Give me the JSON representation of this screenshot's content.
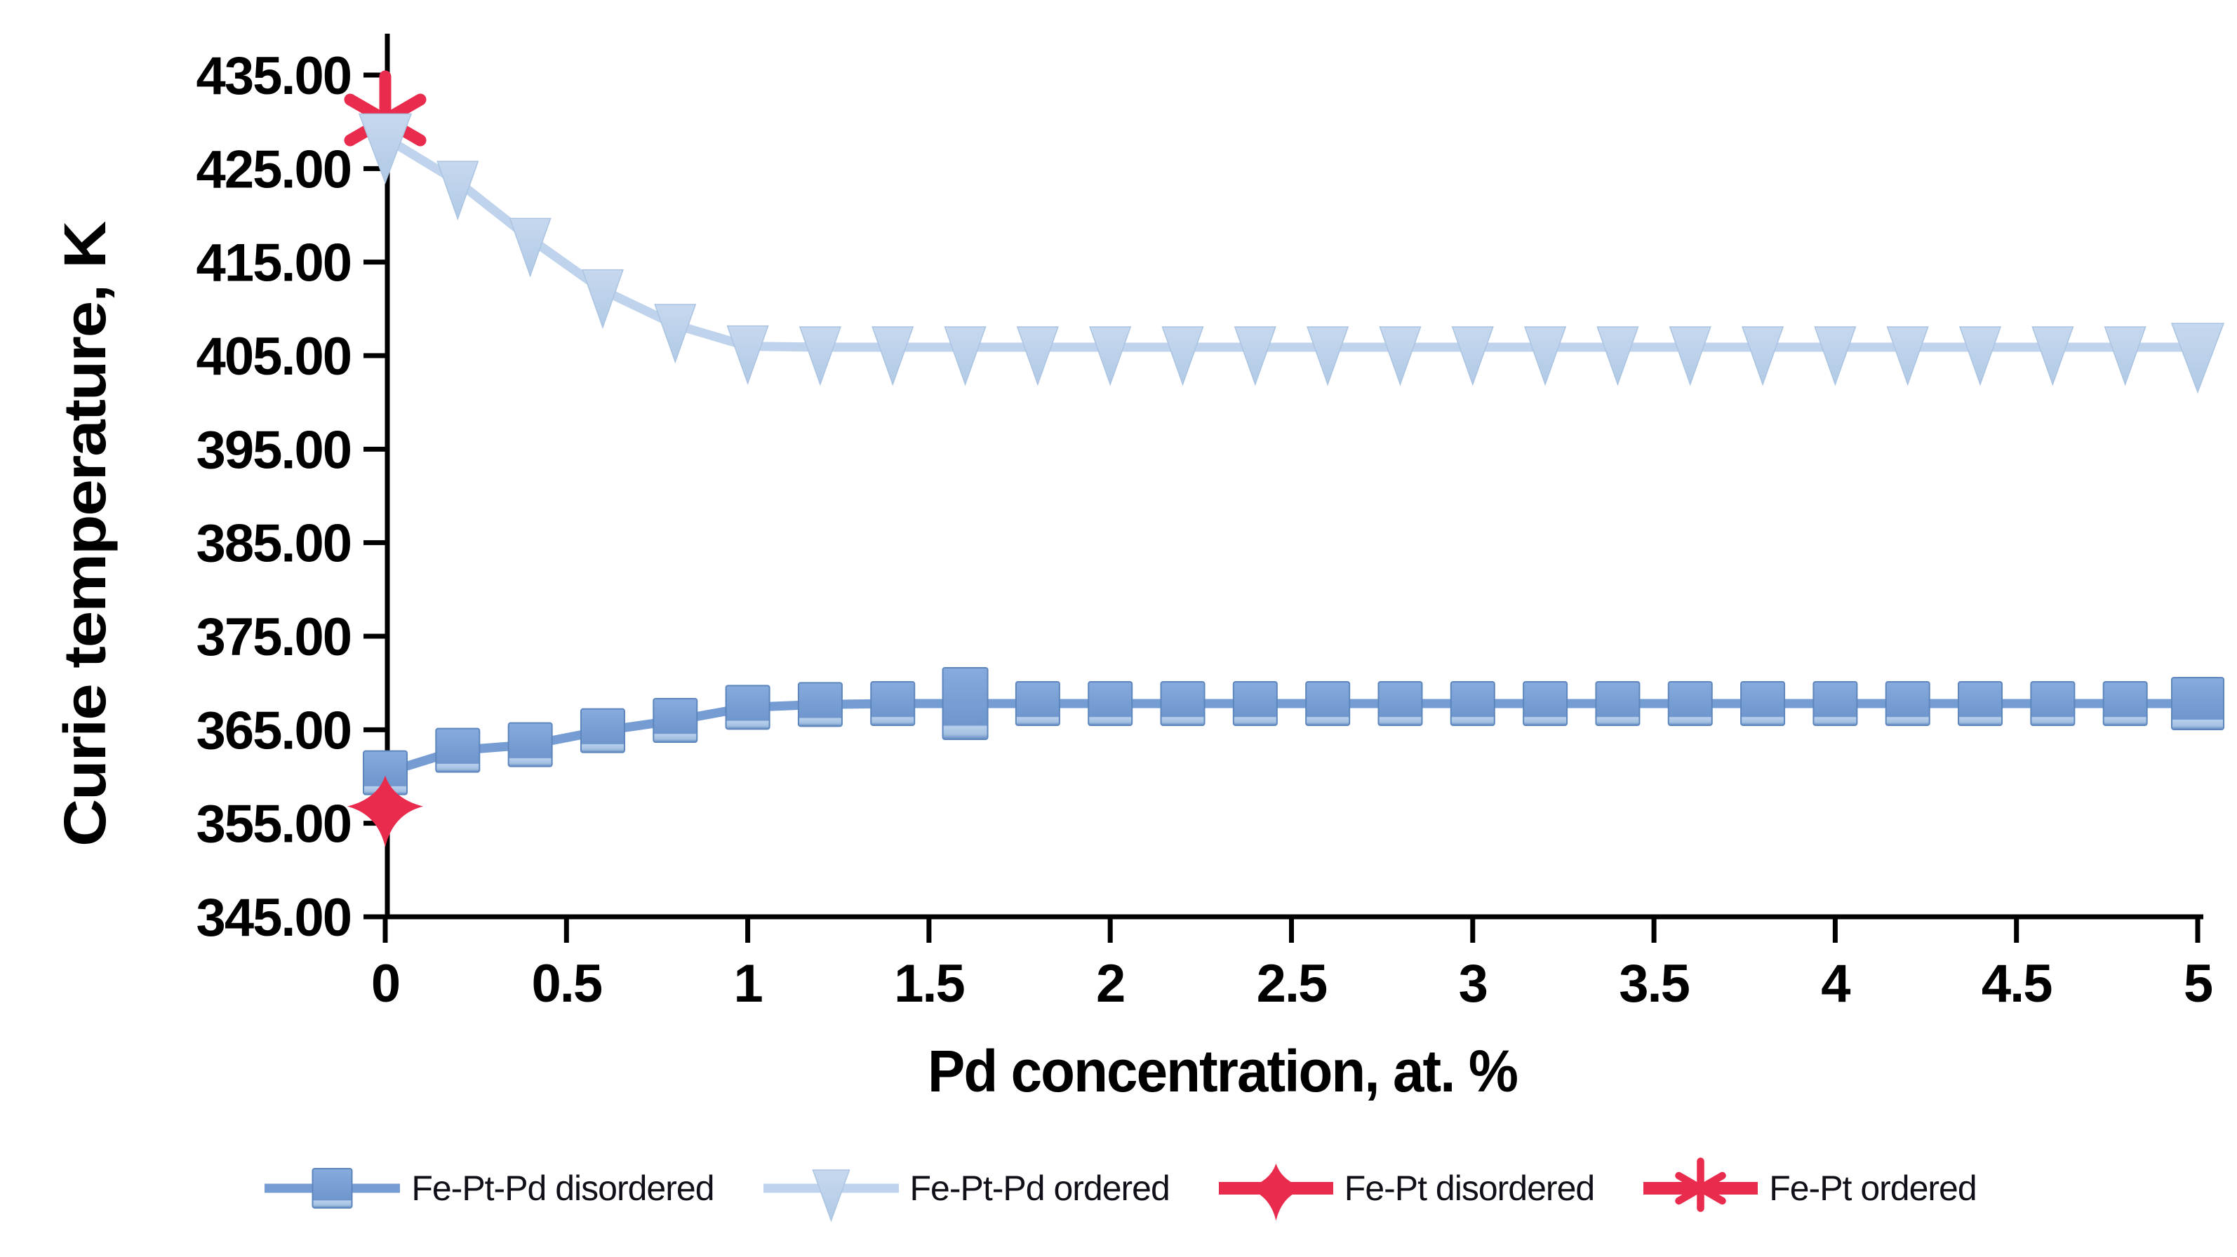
{
  "chart_data": {
    "type": "line",
    "title": "",
    "xlabel": "Pd concentration, at. %",
    "ylabel": "Curie temperature, K",
    "xlim": [
      0,
      5
    ],
    "ylim": [
      345,
      435
    ],
    "grid": false,
    "background": "#ffffff",
    "x_ticks": [
      "0",
      "0.5",
      "1",
      "1.5",
      "2",
      "2.5",
      "3",
      "3.5",
      "4",
      "4.5",
      "5"
    ],
    "x_tick_values": [
      0,
      0.5,
      1,
      1.5,
      2,
      2.5,
      3,
      3.5,
      4,
      4.5,
      5
    ],
    "y_ticks": [
      "345.00",
      "355.00",
      "365.00",
      "375.00",
      "385.00",
      "395.00",
      "405.00",
      "415.00",
      "425.00",
      "435.00"
    ],
    "y_tick_values": [
      345,
      355,
      365,
      375,
      385,
      395,
      405,
      415,
      425,
      435
    ],
    "legend_position": "bottom",
    "series": [
      {
        "name": "Fe-Pt-Pd disordered",
        "marker": "square",
        "color": "#759cd3",
        "edge_color": "#5d86bd",
        "x": [
          0,
          0.2,
          0.4,
          0.6,
          0.8,
          1.0,
          1.2,
          1.4,
          1.6,
          1.8,
          2.0,
          2.2,
          2.4,
          2.6,
          2.8,
          3.0,
          3.2,
          3.4,
          3.6,
          3.8,
          4.0,
          4.2,
          4.4,
          4.6,
          4.8,
          5.0
        ],
        "y": [
          360.4,
          362.8,
          363.4,
          364.9,
          366.0,
          367.4,
          367.7,
          367.8,
          367.8,
          367.8,
          367.8,
          367.8,
          367.8,
          367.8,
          367.8,
          367.8,
          367.8,
          367.8,
          367.8,
          367.8,
          367.8,
          367.8,
          367.8,
          367.8,
          367.8,
          367.8
        ],
        "marker_overrides": {
          "8": "tall",
          "25": "big"
        }
      },
      {
        "name": "Fe-Pt-Pd ordered",
        "marker": "triangle-down",
        "color": "#bfd4ec",
        "edge_color": "#aac4e2",
        "x": [
          0,
          0.2,
          0.4,
          0.6,
          0.8,
          1.0,
          1.2,
          1.4,
          1.6,
          1.8,
          2.0,
          2.2,
          2.4,
          2.6,
          2.8,
          3.0,
          3.2,
          3.4,
          3.6,
          3.8,
          4.0,
          4.2,
          4.4,
          4.6,
          4.8,
          5.0
        ],
        "y": [
          428.3,
          423.6,
          417.5,
          412.0,
          408.3,
          406.0,
          405.9,
          405.9,
          405.9,
          405.9,
          405.9,
          405.9,
          405.9,
          405.9,
          405.9,
          405.9,
          405.9,
          405.9,
          405.9,
          405.9,
          405.9,
          405.9,
          405.9,
          405.9,
          405.9,
          405.9
        ],
        "marker_overrides": {
          "0": "big",
          "25": "big"
        }
      },
      {
        "name": "Fe-Pt disordered",
        "marker": "star4",
        "color": "#e92c4d",
        "x": [
          0
        ],
        "y": [
          356.8
        ]
      },
      {
        "name": "Fe-Pt ordered",
        "marker": "asterisk6",
        "color": "#e92c4d",
        "x": [
          0
        ],
        "y": [
          430.2
        ]
      }
    ]
  },
  "colors": {
    "axis": "#000000",
    "tick_text": "#000000",
    "legend_text": "#101018"
  }
}
